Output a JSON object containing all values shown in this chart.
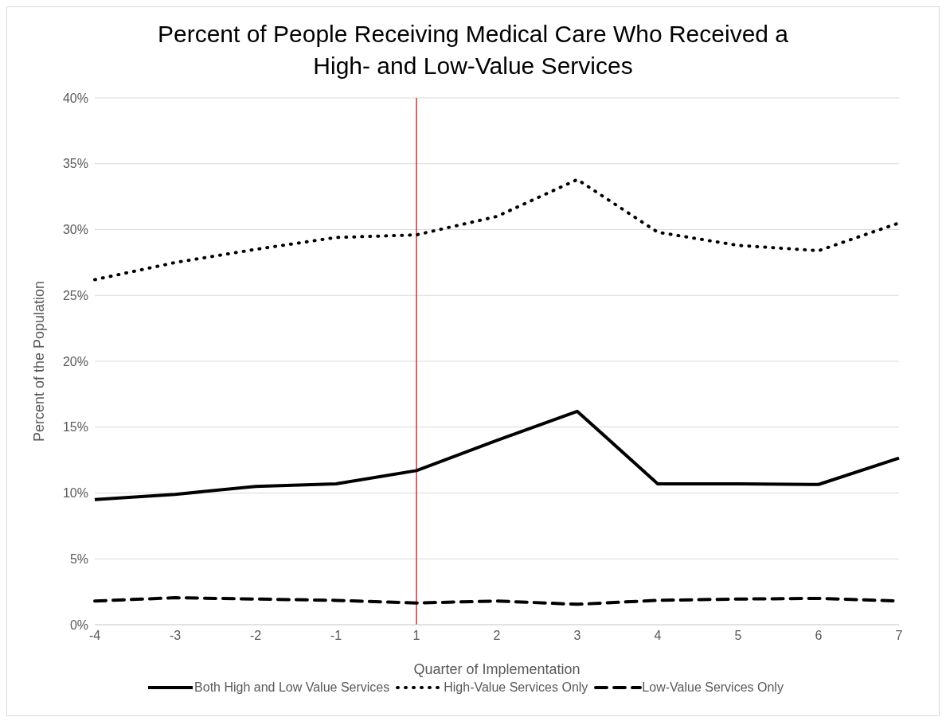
{
  "chart_data": {
    "type": "line",
    "title": "Percent of People Receiving Medical Care Who Received a High- and Low-Value Services",
    "xlabel": "Quarter of Implementation",
    "ylabel": "Percent of the Population",
    "categories": [
      "-4",
      "-3",
      "-2",
      "-1",
      "1",
      "2",
      "3",
      "4",
      "5",
      "6",
      "7"
    ],
    "series": [
      {
        "name": "Both High and Low Value Services",
        "color": "#000000",
        "line_style": "solid",
        "values": [
          9.5,
          9.9,
          10.5,
          10.7,
          11.7,
          14.0,
          16.2,
          10.7,
          10.7,
          10.65,
          12.65
        ]
      },
      {
        "name": "High-Value Services Only",
        "color": "#000000",
        "line_style": "dotted",
        "values": [
          26.2,
          27.5,
          28.5,
          29.4,
          29.6,
          31.0,
          33.8,
          29.8,
          28.8,
          28.4,
          30.5
        ]
      },
      {
        "name": "Low-Value Services Only",
        "color": "#000000",
        "line_style": "dashed",
        "values": [
          1.8,
          2.05,
          1.95,
          1.85,
          1.65,
          1.8,
          1.55,
          1.85,
          1.95,
          2.0,
          1.8
        ]
      }
    ],
    "ylim": [
      0,
      40
    ],
    "yticks": [
      {
        "value": 0,
        "label": "0%"
      },
      {
        "value": 5,
        "label": "5%"
      },
      {
        "value": 10,
        "label": "10%"
      },
      {
        "value": 15,
        "label": "15%"
      },
      {
        "value": 20,
        "label": "20%"
      },
      {
        "value": 25,
        "label": "25%"
      },
      {
        "value": 30,
        "label": "30%"
      },
      {
        "value": 35,
        "label": "35%"
      },
      {
        "value": 40,
        "label": "40%"
      }
    ],
    "ref_lines": [
      {
        "axis": "x",
        "value": "1",
        "color": "#c00000",
        "line_style": "solid"
      }
    ],
    "grid": "y",
    "legend": "bottom",
    "marker": "none"
  }
}
